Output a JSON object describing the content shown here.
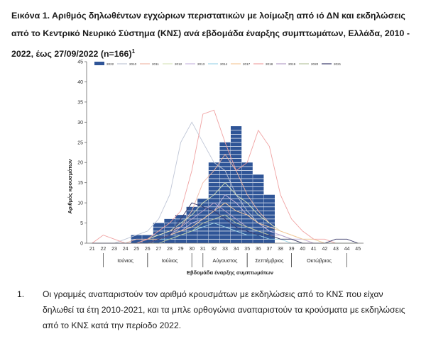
{
  "caption": {
    "text": "Εικόνα 1. Αριθμός δηλωθέντων εγχώριων περιστατικών με λοίμωξη από ιό ΔΝ και εκδηλώσεις από το Κεντρικό Νευρικό Σύστημα (ΚΝΣ) ανά εβδομάδα έναρξης συμπτωμάτων, Ελλάδα, 2010 - 2022, έως 27/09/2022 (n=166)",
    "footnote_mark": "1"
  },
  "note": {
    "number": "1.",
    "text": "Οι γραμμές αναπαριστούν τον αριθμό κρουσμάτων με εκδηλώσεις από το ΚΝΣ που είχαν δηλωθεί τα έτη 2010-2021, και τα μπλε ορθογώνια αναπαριστούν τα κρούσματα με εκδηλώσεις από το ΚΝΣ κατά την περίοδο 2022."
  },
  "chart_data": {
    "type": "bar",
    "ylabel": "Αριθμός κρουσμάτων",
    "xlabel": "Εβδομάδα έναρξης συμπτωμάτων",
    "ylim": [
      0,
      45
    ],
    "yticks": [
      "0",
      "5",
      "10",
      "15",
      "20",
      "25",
      "30",
      "35",
      "40",
      "45"
    ],
    "categories": [
      "21",
      "22",
      "23",
      "24",
      "25",
      "26",
      "27",
      "28",
      "29",
      "30",
      "31",
      "32",
      "33",
      "34",
      "35",
      "36",
      "37",
      "38",
      "39",
      "40",
      "41",
      "42",
      "43",
      "44",
      "45"
    ],
    "months": [
      {
        "label": "Ιούνιος",
        "from": "22",
        "to": "26"
      },
      {
        "label": "Ιούλιος",
        "from": "26",
        "to": "30"
      },
      {
        "label": "Αύγουστος",
        "from": "31",
        "to": "35"
      },
      {
        "label": "Σεπτέμβριος",
        "from": "35",
        "to": "39"
      },
      {
        "label": "Οκτώβριος",
        "from": "39",
        "to": "44"
      }
    ],
    "legend_position": "top",
    "bar_series": {
      "name": "2022",
      "color": "#2f5597",
      "values": [
        0,
        0,
        0,
        0,
        2,
        2,
        5,
        6,
        7,
        9,
        11,
        20,
        25,
        29,
        20,
        17,
        12,
        0,
        0,
        0,
        0,
        0,
        0,
        0,
        0
      ]
    },
    "line_series": [
      {
        "name": "2010",
        "color": "#bfc6d6",
        "values": [
          0,
          0,
          0,
          1,
          2,
          3,
          6,
          12,
          25,
          30,
          25,
          20,
          18,
          12,
          8,
          5,
          3,
          2,
          1,
          1,
          0,
          0,
          0,
          0,
          0
        ]
      },
      {
        "name": "2011",
        "color": "#f0b9a8",
        "values": [
          0,
          0,
          0,
          0,
          1,
          1,
          2,
          3,
          4,
          8,
          15,
          18,
          22,
          18,
          12,
          8,
          5,
          3,
          2,
          1,
          0,
          0,
          0,
          0,
          0
        ]
      },
      {
        "name": "2012",
        "color": "#d8e4bc",
        "values": [
          0,
          0,
          0,
          0,
          0,
          1,
          2,
          3,
          5,
          7,
          10,
          12,
          15,
          12,
          10,
          7,
          5,
          3,
          2,
          1,
          1,
          0,
          0,
          0,
          0
        ]
      },
      {
        "name": "2013",
        "color": "#c7b8e0",
        "values": [
          0,
          0,
          0,
          0,
          0,
          0,
          1,
          2,
          3,
          5,
          6,
          8,
          12,
          10,
          7,
          5,
          3,
          2,
          1,
          1,
          0,
          0,
          0,
          0,
          0
        ]
      },
      {
        "name": "2014",
        "color": "#9fd6e8",
        "values": [
          0,
          0,
          0,
          0,
          0,
          0,
          1,
          1,
          2,
          3,
          4,
          5,
          4,
          3,
          2,
          2,
          1,
          1,
          0,
          0,
          0,
          0,
          0,
          0,
          0
        ]
      },
      {
        "name": "2017",
        "color": "#f5c99b",
        "values": [
          0,
          0,
          0,
          0,
          0,
          1,
          1,
          2,
          3,
          4,
          6,
          8,
          10,
          8,
          7,
          5,
          4,
          3,
          2,
          1,
          1,
          0,
          0,
          0,
          0
        ]
      },
      {
        "name": "2018",
        "color": "#f0a3a3",
        "values": [
          0,
          2,
          1,
          0,
          0,
          1,
          3,
          5,
          8,
          18,
          32,
          33,
          25,
          18,
          20,
          28,
          24,
          12,
          6,
          3,
          1,
          1,
          0,
          0,
          0
        ]
      },
      {
        "name": "2019",
        "color": "#b5a0c8",
        "values": [
          0,
          0,
          0,
          0,
          0,
          0,
          1,
          2,
          4,
          6,
          8,
          10,
          8,
          6,
          4,
          3,
          2,
          2,
          1,
          0,
          0,
          0,
          0,
          0,
          0
        ]
      },
      {
        "name": "2020",
        "color": "#b8c4a0",
        "values": [
          0,
          0,
          0,
          0,
          0,
          0,
          0,
          1,
          2,
          3,
          5,
          6,
          7,
          5,
          4,
          3,
          2,
          1,
          1,
          0,
          0,
          0,
          0,
          0,
          0
        ]
      },
      {
        "name": "2021",
        "color": "#3a3a6a",
        "values": [
          0,
          0,
          0,
          0,
          0,
          0,
          1,
          2,
          6,
          10,
          9,
          8,
          6,
          4,
          3,
          2,
          2,
          1,
          1,
          0,
          0,
          0,
          1,
          1,
          0
        ]
      }
    ]
  }
}
